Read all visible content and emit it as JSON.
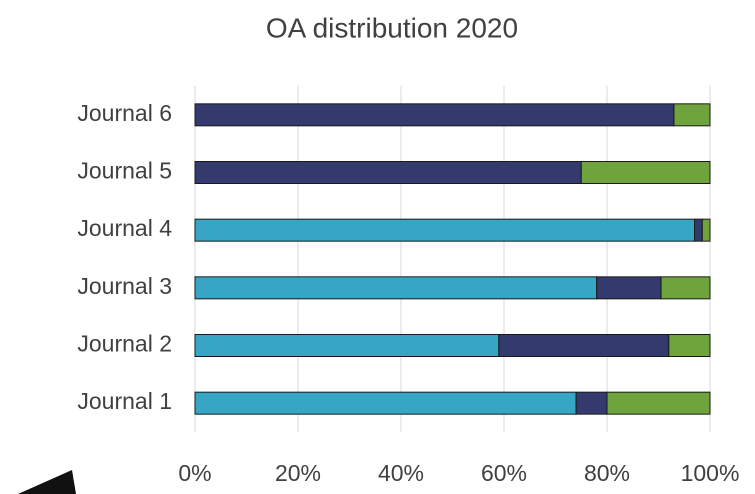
{
  "chart_data": {
    "type": "stacked_bar_horizontal",
    "title": "OA distribution 2020",
    "categories": [
      "Journal 1",
      "Journal 2",
      "Journal 3",
      "Journal 4",
      "Journal 5",
      "Journal 6"
    ],
    "series": [
      {
        "color": "#36a6c4",
        "values": [
          74,
          59,
          78,
          97,
          0,
          0
        ]
      },
      {
        "color": "#343a6e",
        "values": [
          6,
          33,
          12.5,
          1.5,
          75,
          93
        ]
      },
      {
        "color": "#6fa33c",
        "values": [
          20,
          8,
          9.5,
          1.5,
          25,
          7
        ]
      }
    ],
    "xlim": [
      0,
      100
    ],
    "xticks": [
      {
        "value": 0,
        "label": "0%"
      },
      {
        "value": 20,
        "label": "20%"
      },
      {
        "value": 40,
        "label": "40%"
      },
      {
        "value": 60,
        "label": "60%"
      },
      {
        "value": 80,
        "label": "80%"
      },
      {
        "value": 100,
        "label": "100%"
      }
    ],
    "grid": true
  }
}
